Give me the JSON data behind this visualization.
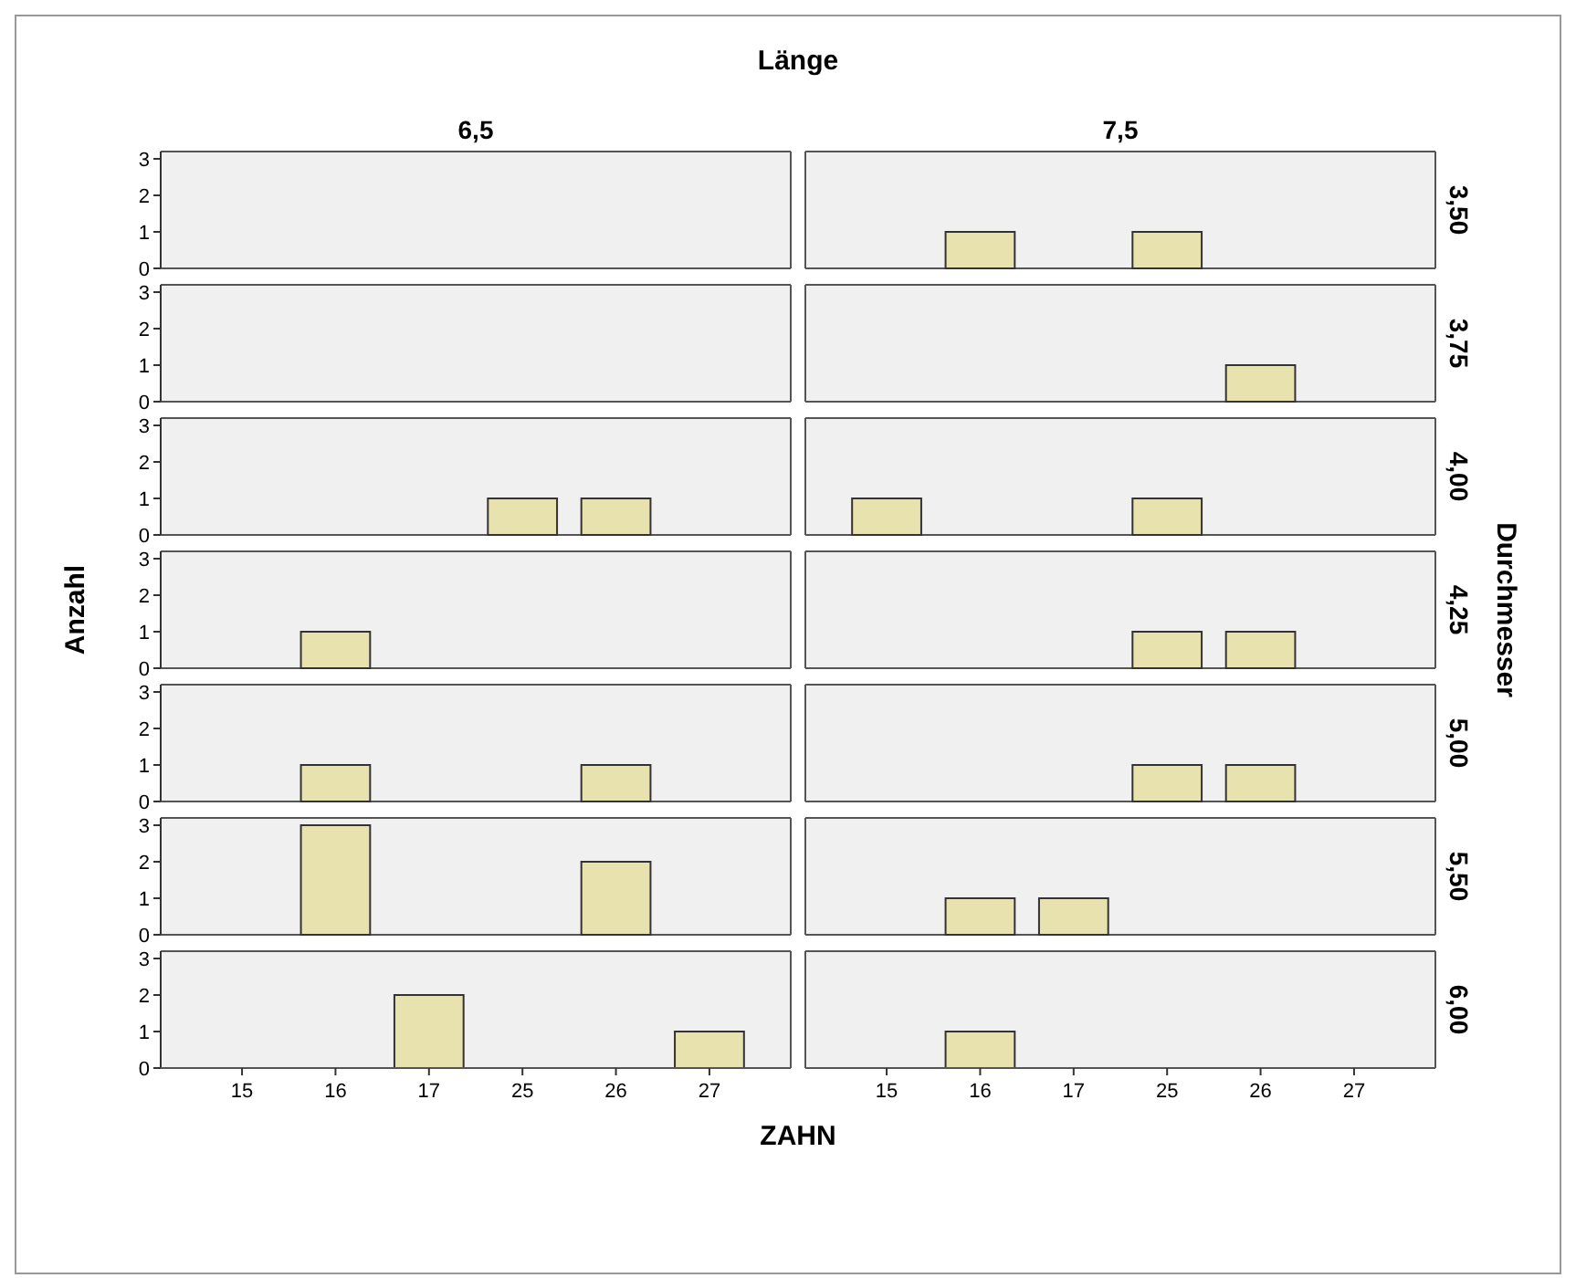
{
  "chart_data": [
    {
      "type": "bar",
      "title": "Länge",
      "annotations": [
        "6,5",
        "7,5",
        "3,50"
      ],
      "categories": [
        "15",
        "16",
        "17",
        "25",
        "26",
        "27",
        "15",
        "16",
        "17",
        "25",
        "26",
        "27"
      ],
      "values": [
        0,
        0,
        0,
        0,
        0,
        0,
        0,
        1,
        0,
        1,
        0,
        0
      ],
      "color": "#e8e2ae",
      "ylim": [
        0,
        3.2
      ],
      "yticks": [
        0,
        1,
        2,
        3
      ],
      "tick_labels": "y"
    },
    {
      "type": "bar",
      "annotations": [
        "3,75"
      ],
      "categories": [
        "15",
        "16",
        "17",
        "25",
        "26",
        "27",
        "15",
        "16",
        "17",
        "25",
        "26",
        "27"
      ],
      "values": [
        0,
        0,
        0,
        0,
        0,
        0,
        0,
        0,
        0,
        0,
        1,
        0
      ],
      "color": "#e8e2ae",
      "ylim": [
        0,
        3.2
      ],
      "yticks": [
        0,
        1,
        2,
        3
      ],
      "tick_labels": "y"
    },
    {
      "type": "bar",
      "annotations": [
        "4,00"
      ],
      "categories": [
        "15",
        "16",
        "17",
        "25",
        "26",
        "27",
        "15",
        "16",
        "17",
        "25",
        "26",
        "27"
      ],
      "values": [
        0,
        0,
        0,
        1,
        1,
        0,
        1,
        0,
        0,
        1,
        0,
        0
      ],
      "color": "#e8e2ae",
      "ylim": [
        0,
        3.2
      ],
      "yticks": [
        0,
        1,
        2,
        3
      ],
      "tick_labels": "y"
    },
    {
      "type": "bar",
      "ylabel": "Anzahl",
      "y2label": "Durchmesser",
      "annotations": [
        "4,25"
      ],
      "categories": [
        "15",
        "16",
        "17",
        "25",
        "26",
        "27",
        "15",
        "16",
        "17",
        "25",
        "26",
        "27"
      ],
      "values": [
        0,
        1,
        0,
        0,
        0,
        0,
        0,
        0,
        0,
        1,
        1,
        0
      ],
      "color": "#e8e2ae",
      "ylim": [
        0,
        3.2
      ],
      "yticks": [
        0,
        1,
        2,
        3
      ],
      "tick_labels": "y"
    },
    {
      "type": "bar",
      "annotations": [
        "5,00"
      ],
      "categories": [
        "15",
        "16",
        "17",
        "25",
        "26",
        "27",
        "15",
        "16",
        "17",
        "25",
        "26",
        "27"
      ],
      "values": [
        0,
        1,
        0,
        0,
        1,
        0,
        0,
        0,
        0,
        1,
        1,
        0
      ],
      "color": "#e8e2ae",
      "ylim": [
        0,
        3.2
      ],
      "yticks": [
        0,
        1,
        2,
        3
      ],
      "tick_labels": "y"
    },
    {
      "type": "bar",
      "annotations": [
        "5,50"
      ],
      "categories": [
        "15",
        "16",
        "17",
        "25",
        "26",
        "27",
        "15",
        "16",
        "17",
        "25",
        "26",
        "27"
      ],
      "values": [
        0,
        3,
        0,
        0,
        2,
        0,
        0,
        1,
        1,
        0,
        0,
        0
      ],
      "color": "#e8e2ae",
      "ylim": [
        0,
        3.2
      ],
      "yticks": [
        0,
        1,
        2,
        3
      ],
      "tick_labels": "y"
    },
    {
      "type": "bar",
      "xlabel": "ZAHN",
      "annotations": [
        "6,00"
      ],
      "categories": [
        "15",
        "16",
        "17",
        "25",
        "26",
        "27",
        "15",
        "16",
        "17",
        "25",
        "26",
        "27"
      ],
      "values": [
        0,
        0,
        2,
        0,
        0,
        1,
        0,
        1,
        0,
        0,
        0,
        0
      ],
      "color": "#e8e2ae",
      "ylim": [
        0,
        3.2
      ],
      "yticks": [
        0,
        1,
        2,
        3
      ]
    }
  ]
}
